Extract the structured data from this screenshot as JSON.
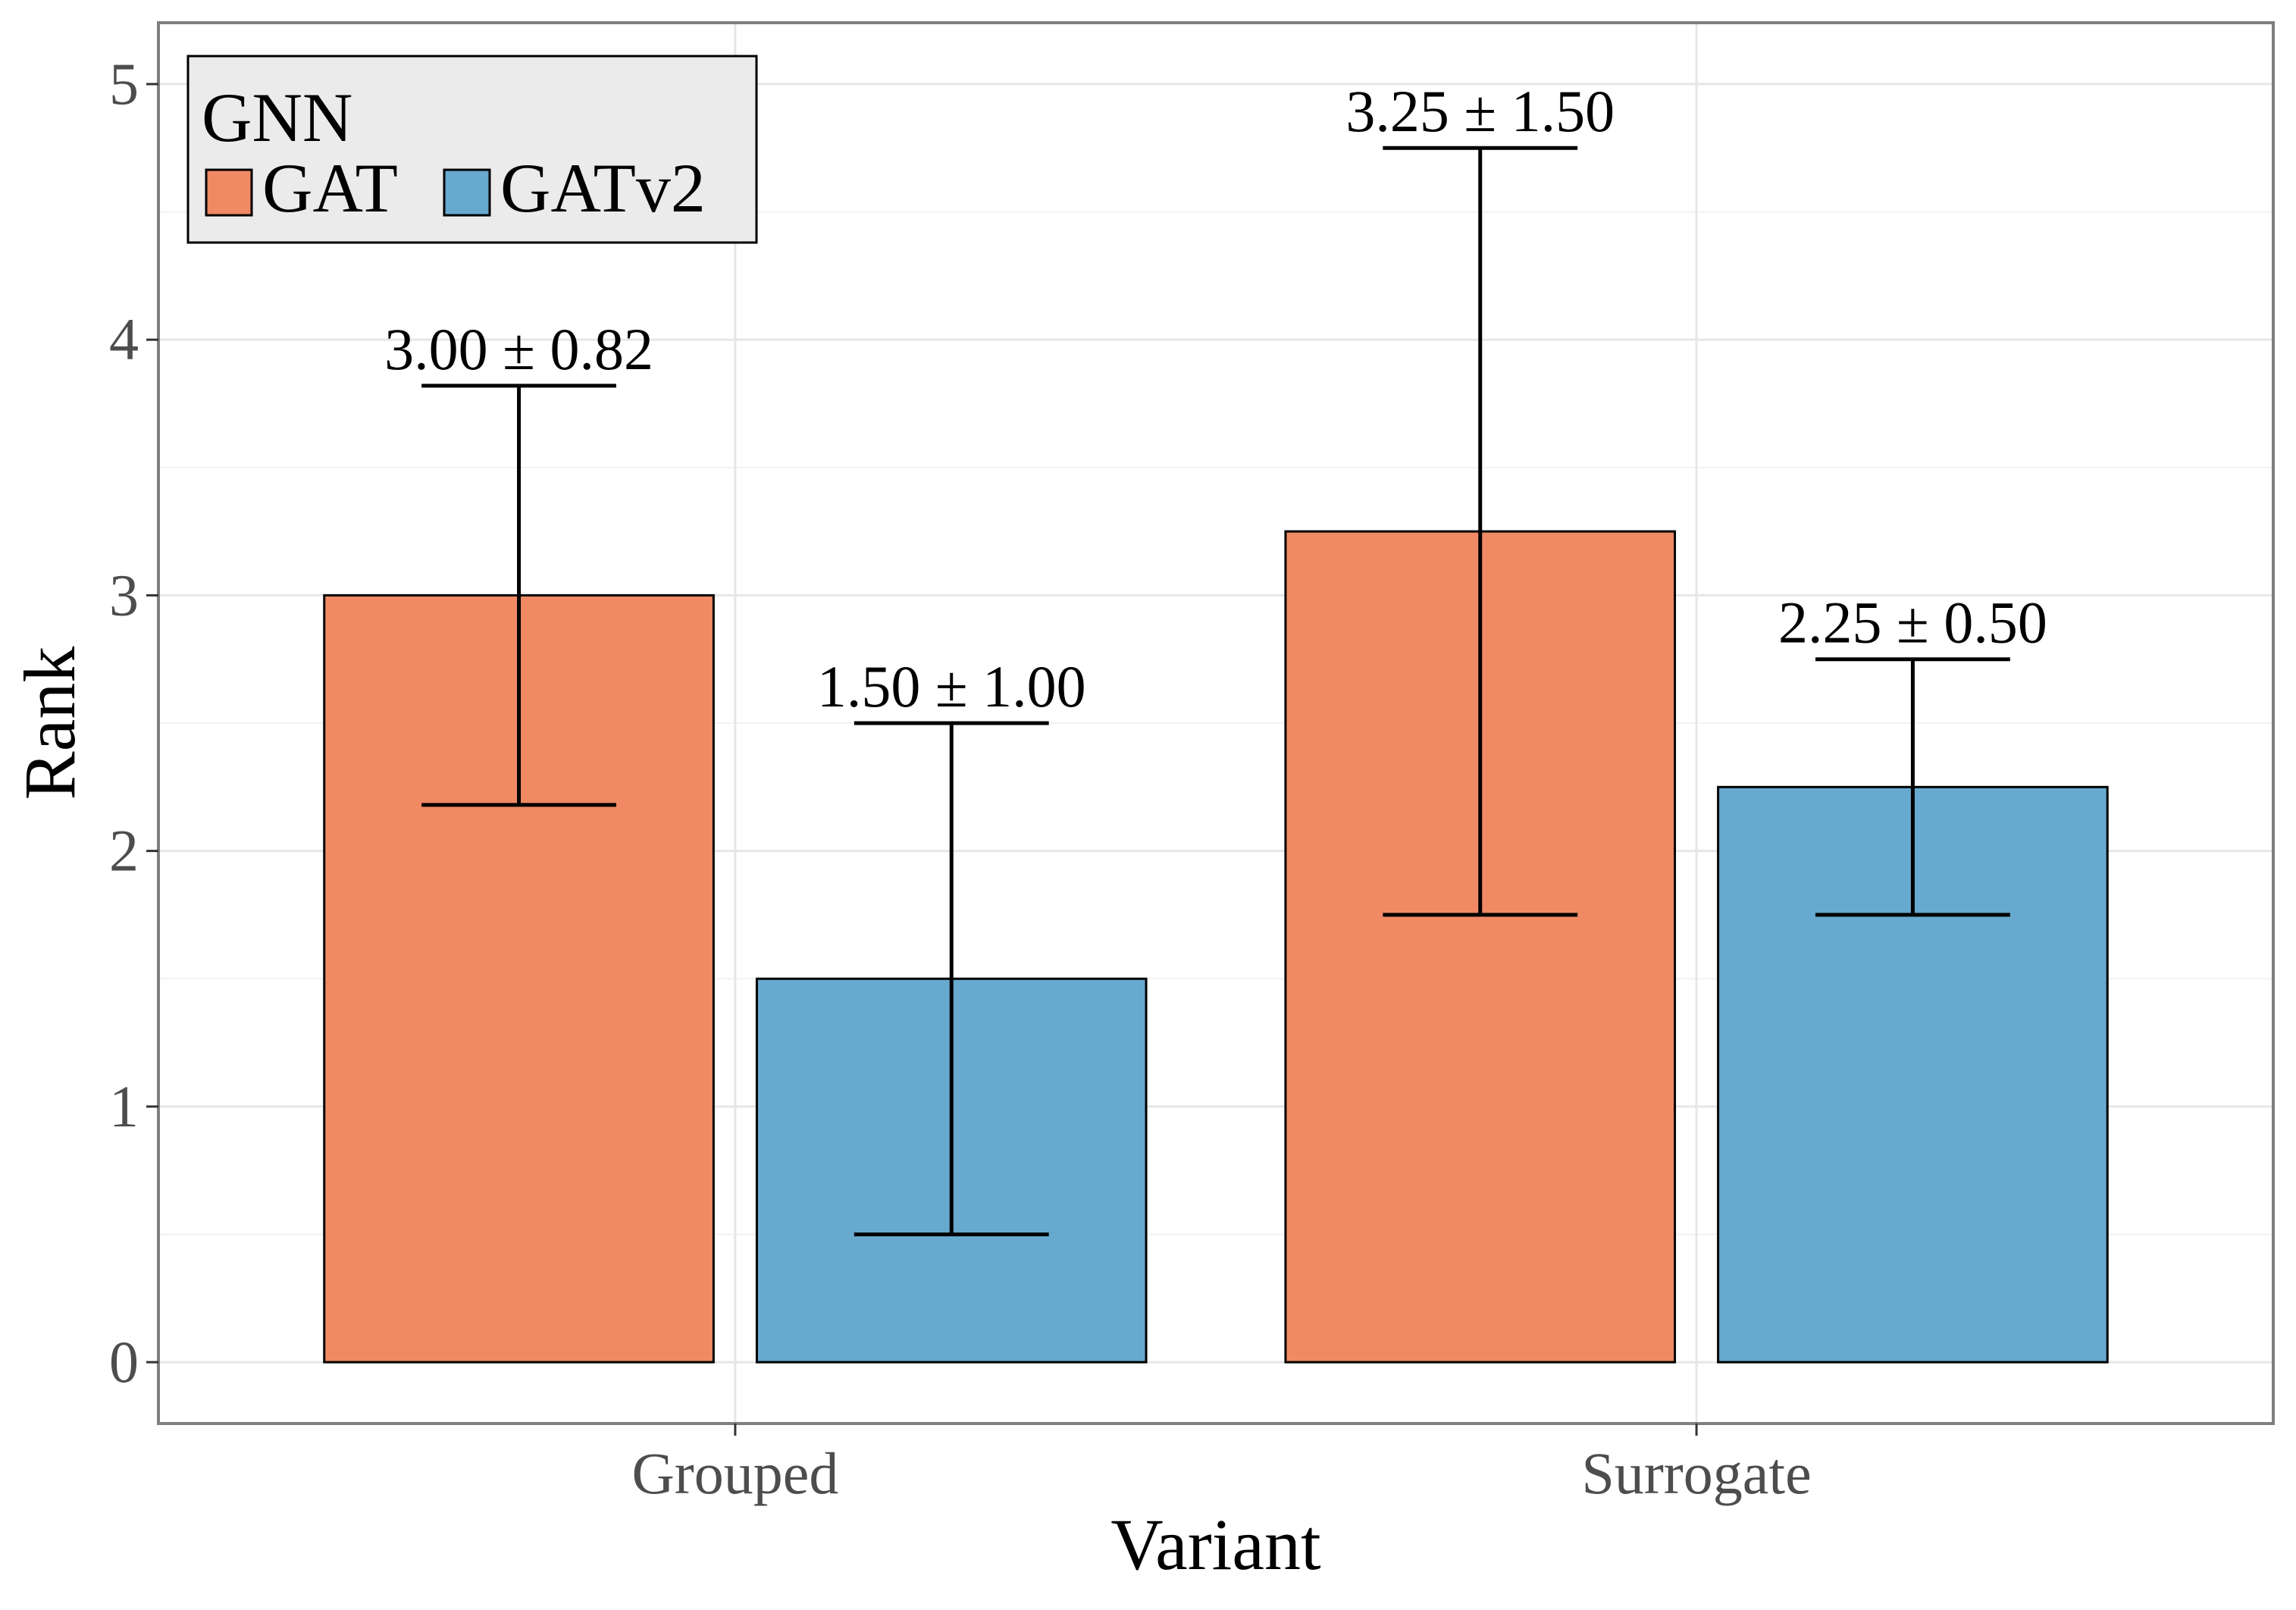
{
  "chart_data": {
    "type": "bar",
    "categories": [
      "Grouped",
      "Surrogate"
    ],
    "series": [
      {
        "name": "GAT",
        "color": "#F08A65",
        "values": [
          3.0,
          3.25
        ],
        "errors": [
          0.82,
          1.5
        ],
        "labels": [
          "3.00 ± 0.82",
          "3.25 ± 1.50"
        ]
      },
      {
        "name": "GATv2",
        "color": "#67A9CF",
        "values": [
          1.5,
          2.25
        ],
        "errors": [
          1.0,
          0.5
        ],
        "labels": [
          "1.50 ± 1.00",
          "2.25 ± 0.50"
        ]
      }
    ],
    "xlabel": "Variant",
    "ylabel": "Rank",
    "ylim": [
      -0.24,
      5.24
    ],
    "yticks": [
      "0",
      "1",
      "2",
      "3",
      "4",
      "5"
    ],
    "grid": true,
    "legend": {
      "title": "GNN",
      "position": "top-left"
    }
  }
}
